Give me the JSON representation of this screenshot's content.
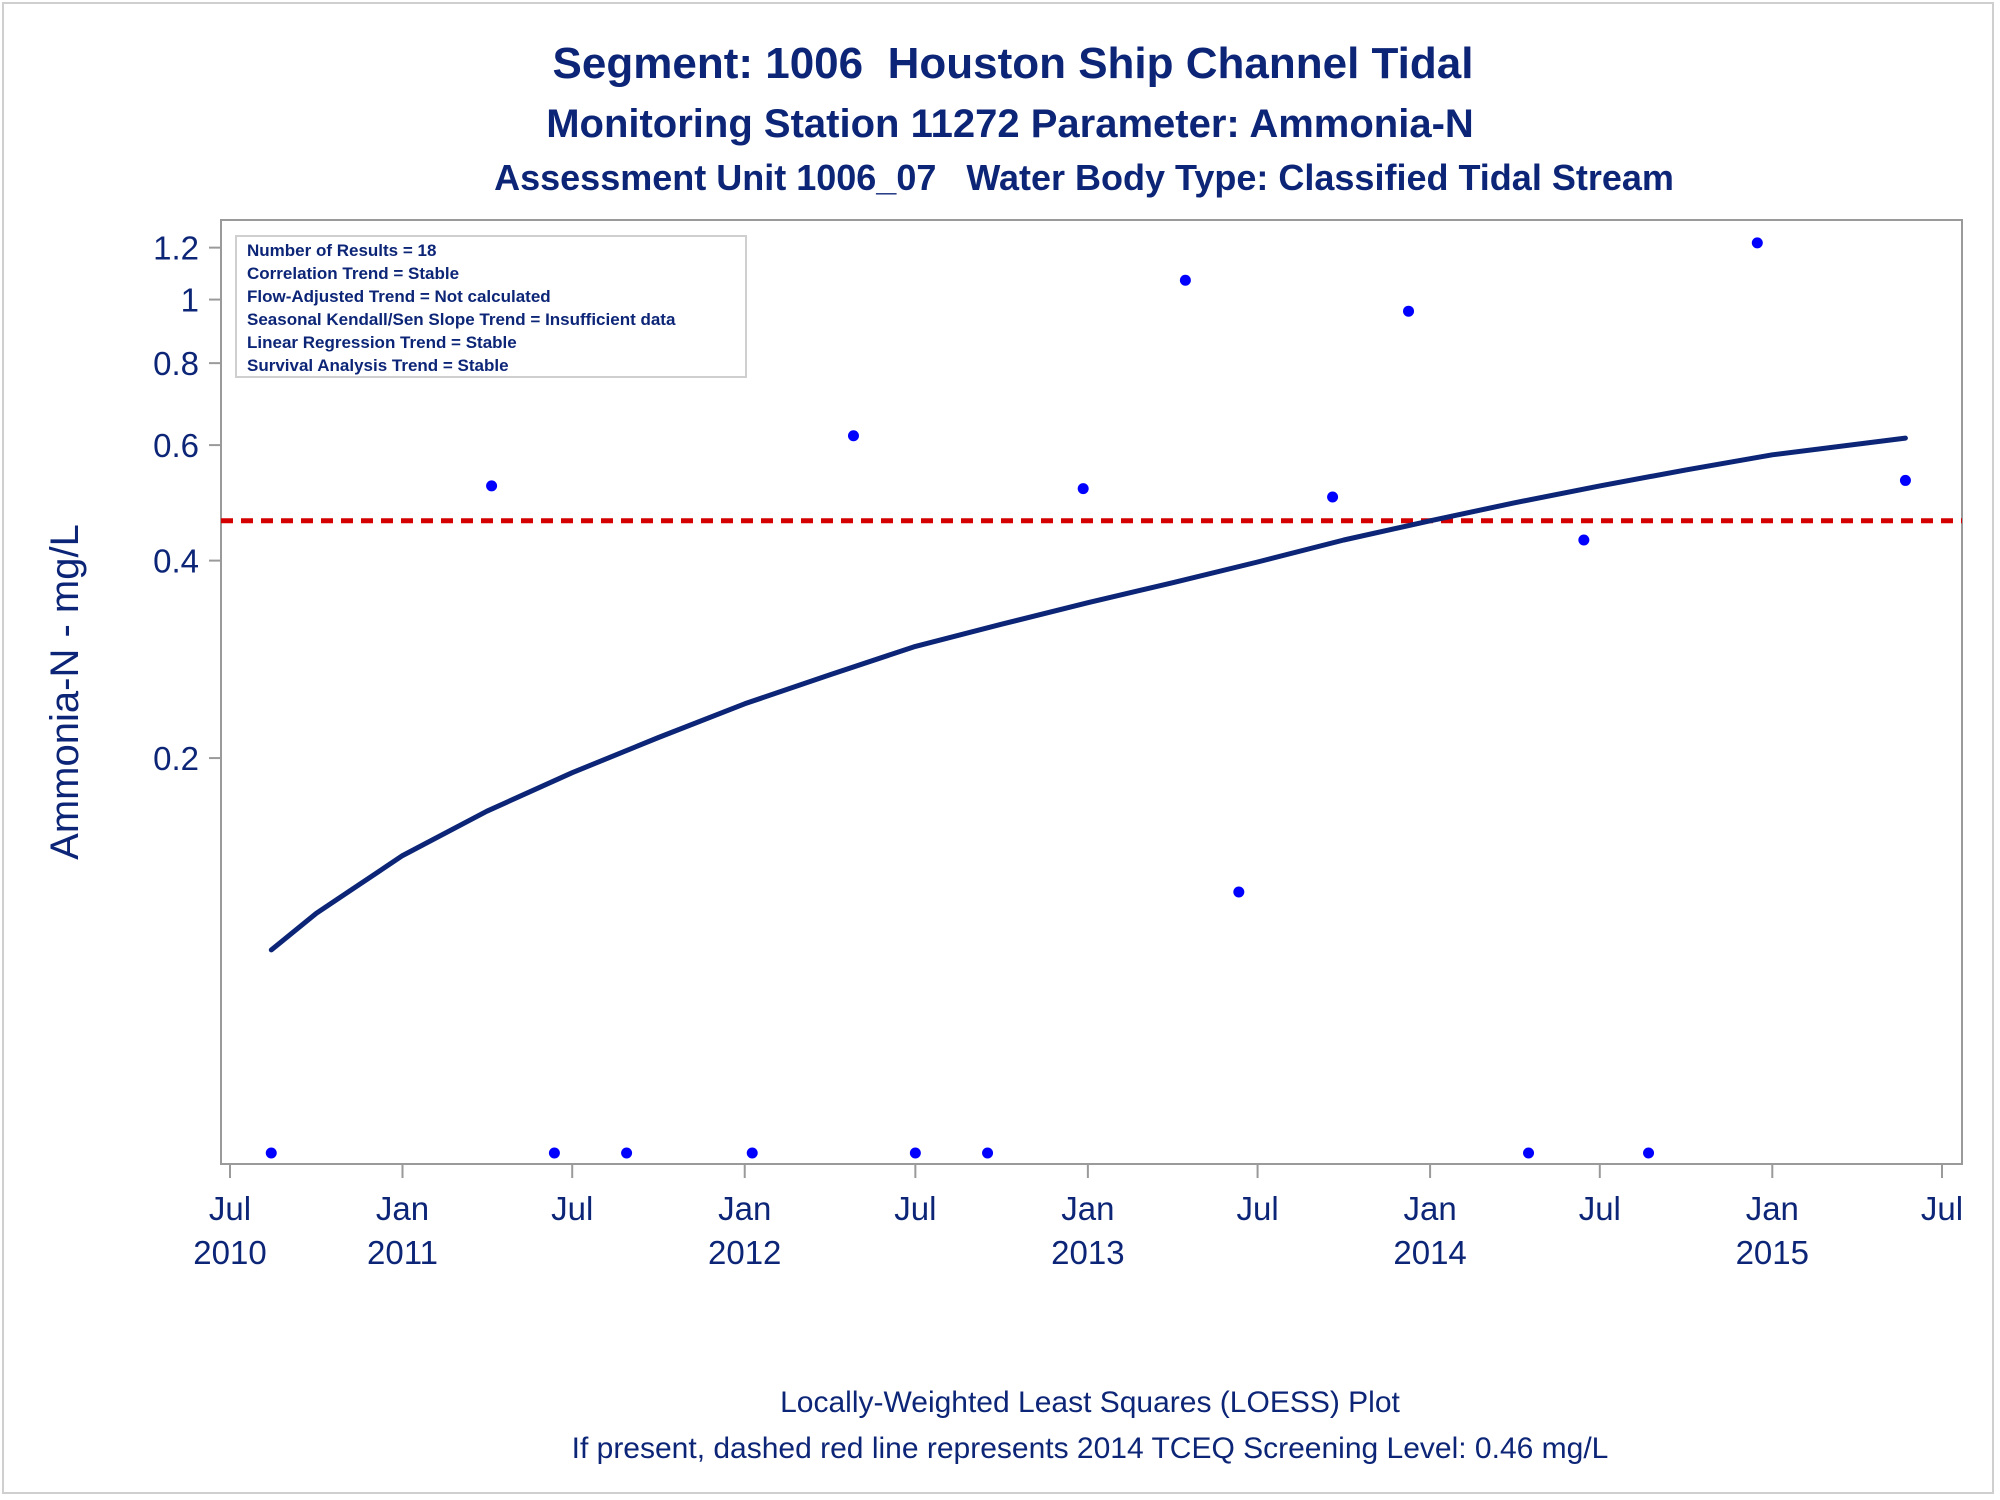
{
  "chart_data": {
    "type": "scatter",
    "title": "Segment: 1006  Houston Ship Channel Tidal",
    "subtitle": "Monitoring Station 11272 Parameter: Ammonia-N",
    "subtitle2": "Assessment Unit 1006_07   Water Body Type: Classified Tidal Stream",
    "xlabel": "",
    "ylabel": "Ammonia-N - mg/L",
    "y_scale": "log",
    "ylim": [
      0.05,
      1.25
    ],
    "xlim": [
      "2010-07-01",
      "2015-07-01"
    ],
    "x_ticks": [
      {
        "date": "2010-07-01",
        "line1": "Jul",
        "line2": "2010"
      },
      {
        "date": "2011-01-01",
        "line1": "Jan",
        "line2": "2011"
      },
      {
        "date": "2011-07-01",
        "line1": "Jul",
        "line2": ""
      },
      {
        "date": "2012-01-01",
        "line1": "Jan",
        "line2": "2012"
      },
      {
        "date": "2012-07-01",
        "line1": "Jul",
        "line2": ""
      },
      {
        "date": "2013-01-01",
        "line1": "Jan",
        "line2": "2013"
      },
      {
        "date": "2013-07-01",
        "line1": "Jul",
        "line2": ""
      },
      {
        "date": "2014-01-01",
        "line1": "Jan",
        "line2": "2014"
      },
      {
        "date": "2014-07-01",
        "line1": "Jul",
        "line2": ""
      },
      {
        "date": "2015-01-01",
        "line1": "Jan",
        "line2": "2015"
      },
      {
        "date": "2015-07-01",
        "line1": "Jul",
        "line2": ""
      }
    ],
    "y_ticks": [
      {
        "value": 0.2,
        "label": "0.2"
      },
      {
        "value": 0.4,
        "label": "0.4"
      },
      {
        "value": 0.6,
        "label": "0.6"
      },
      {
        "value": 0.8,
        "label": "0.8"
      },
      {
        "value": 1.0,
        "label": "1"
      },
      {
        "value": 1.2,
        "label": "1.2"
      }
    ],
    "points": [
      {
        "x": "2010-08-14",
        "y": 0.05
      },
      {
        "x": "2011-04-06",
        "y": 0.52
      },
      {
        "x": "2011-06-12",
        "y": 0.05
      },
      {
        "x": "2011-08-28",
        "y": 0.05
      },
      {
        "x": "2012-01-09",
        "y": 0.05
      },
      {
        "x": "2012-04-26",
        "y": 0.62
      },
      {
        "x": "2012-07-01",
        "y": 0.05
      },
      {
        "x": "2012-09-16",
        "y": 0.05
      },
      {
        "x": "2012-12-27",
        "y": 0.515
      },
      {
        "x": "2013-04-15",
        "y": 1.07
      },
      {
        "x": "2013-06-11",
        "y": 0.125
      },
      {
        "x": "2013-09-19",
        "y": 0.5
      },
      {
        "x": "2013-12-09",
        "y": 0.96
      },
      {
        "x": "2014-04-16",
        "y": 0.05
      },
      {
        "x": "2014-06-14",
        "y": 0.43
      },
      {
        "x": "2014-08-22",
        "y": 0.05
      },
      {
        "x": "2014-12-16",
        "y": 1.22
      },
      {
        "x": "2015-05-23",
        "y": 0.53
      }
    ],
    "loess_curve": [
      {
        "x": "2010-08-14",
        "y": 0.102
      },
      {
        "x": "2010-10-01",
        "y": 0.116
      },
      {
        "x": "2011-01-01",
        "y": 0.142
      },
      {
        "x": "2011-04-01",
        "y": 0.166
      },
      {
        "x": "2011-07-01",
        "y": 0.19
      },
      {
        "x": "2011-10-01",
        "y": 0.215
      },
      {
        "x": "2012-01-01",
        "y": 0.242
      },
      {
        "x": "2012-04-01",
        "y": 0.268
      },
      {
        "x": "2012-07-01",
        "y": 0.296
      },
      {
        "x": "2012-10-01",
        "y": 0.32
      },
      {
        "x": "2013-01-01",
        "y": 0.345
      },
      {
        "x": "2013-04-01",
        "y": 0.37
      },
      {
        "x": "2013-07-01",
        "y": 0.398
      },
      {
        "x": "2013-10-01",
        "y": 0.43
      },
      {
        "x": "2014-01-01",
        "y": 0.46
      },
      {
        "x": "2014-04-01",
        "y": 0.49
      },
      {
        "x": "2014-07-01",
        "y": 0.52
      },
      {
        "x": "2014-10-01",
        "y": 0.55
      },
      {
        "x": "2015-01-01",
        "y": 0.58
      },
      {
        "x": "2015-05-23",
        "y": 0.615
      }
    ],
    "screening_level": 0.46,
    "colors": {
      "points": "#0000ff",
      "curve": "#0c2577",
      "screening_line": "#d40000",
      "text": "#0c2577",
      "axis": "#9a9a9a"
    },
    "legend_box": [
      "Number of Results = 18",
      "Correlation Trend = Stable",
      "Flow-Adjusted Trend = Not calculated",
      "Seasonal Kendall/Sen Slope Trend = Insufficient data",
      "Linear Regression Trend = Stable",
      "Survival Analysis Trend = Stable"
    ],
    "footnote1": "Locally-Weighted Least Squares (LOESS) Plot",
    "footnote2": "If present, dashed red line represents 2014 TCEQ Screening Level: 0.46 mg/L",
    "grid": false,
    "legend_position": "top-left"
  }
}
